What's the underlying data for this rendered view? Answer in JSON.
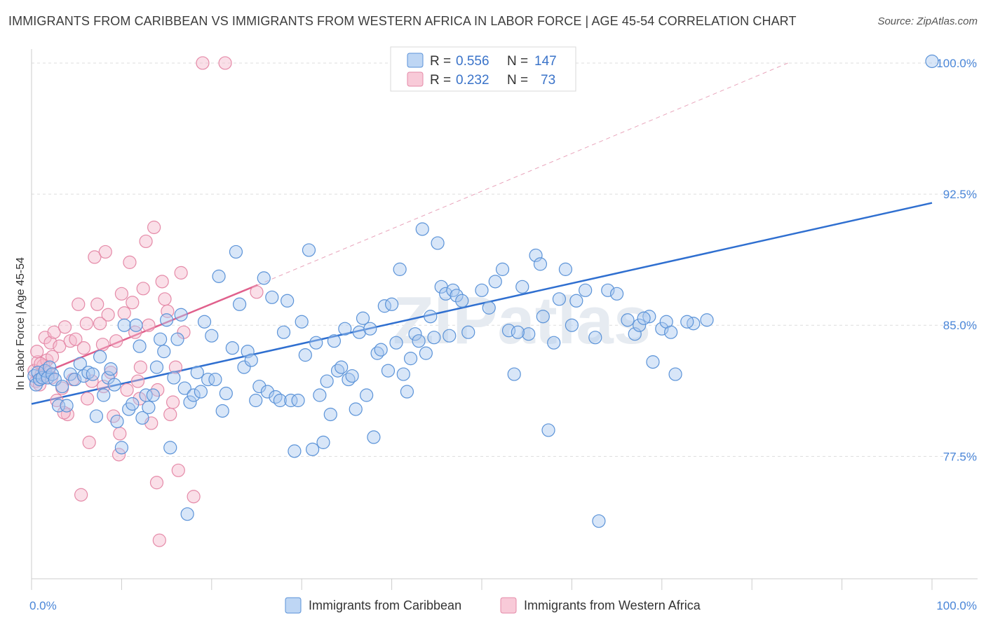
{
  "title": "IMMIGRANTS FROM CARIBBEAN VS IMMIGRANTS FROM WESTERN AFRICA IN LABOR FORCE | AGE 45-54 CORRELATION CHART",
  "source": "Source: ZipAtlas.com",
  "watermark": "ZIPatlas",
  "colors": {
    "caribbean_fill": "#a8c8f0",
    "caribbean_stroke": "#5b93d8",
    "caribbean_line": "#2f6fd0",
    "wafrica_fill": "#f5b8cb",
    "wafrica_stroke": "#e58aa8",
    "wafrica_line": "#e0608c",
    "axis_label": "#4a86d8",
    "grid": "#dddddd"
  },
  "legend": {
    "r_label": "R =",
    "n_label": "N =",
    "rows": [
      {
        "r": "0.556",
        "n": "147"
      },
      {
        "r": "0.232",
        "n": "73"
      }
    ]
  },
  "chart_data": {
    "type": "scatter",
    "title": "IMMIGRANTS FROM CARIBBEAN VS IMMIGRANTS FROM WESTERN AFRICA IN LABOR FORCE | AGE 45-54 CORRELATION CHART",
    "xlabel": "",
    "ylabel": "In Labor Force | Age 45-54",
    "xlim": [
      0,
      100
    ],
    "ylim": [
      70.5,
      100.8
    ],
    "x_tick_labels": [
      "0.0%",
      "100.0%"
    ],
    "y_ticks": [
      77.5,
      85.0,
      92.5,
      100.0
    ],
    "y_tick_labels": [
      "77.5%",
      "85.0%",
      "92.5%",
      "100.0%"
    ],
    "grid": true,
    "legend_position": "top-center",
    "series": [
      {
        "name": "Immigrants from Caribbean",
        "R": 0.556,
        "N": 147,
        "trend": {
          "x": [
            0,
            100
          ],
          "y": [
            80.5,
            92.0
          ]
        },
        "points": [
          [
            0.3,
            82.1
          ],
          [
            0.5,
            81.6
          ],
          [
            0.7,
            82.3
          ],
          [
            0.9,
            81.9
          ],
          [
            1.2,
            82.0
          ],
          [
            1.5,
            82.4
          ],
          [
            1.8,
            82.0
          ],
          [
            2.0,
            82.6
          ],
          [
            2.3,
            82.2
          ],
          [
            2.6,
            81.9
          ],
          [
            3.0,
            80.4
          ],
          [
            3.4,
            81.5
          ],
          [
            3.9,
            80.4
          ],
          [
            4.3,
            82.2
          ],
          [
            4.8,
            81.9
          ],
          [
            5.4,
            82.8
          ],
          [
            5.8,
            82.1
          ],
          [
            6.3,
            82.3
          ],
          [
            6.8,
            82.2
          ],
          [
            7.2,
            79.8
          ],
          [
            7.6,
            83.2
          ],
          [
            8.0,
            81.0
          ],
          [
            8.5,
            82.0
          ],
          [
            8.8,
            82.5
          ],
          [
            9.2,
            81.6
          ],
          [
            9.5,
            79.5
          ],
          [
            10.0,
            78.0
          ],
          [
            10.3,
            85.0
          ],
          [
            10.8,
            80.2
          ],
          [
            11.2,
            80.5
          ],
          [
            11.6,
            85.0
          ],
          [
            12.0,
            83.8
          ],
          [
            12.3,
            79.7
          ],
          [
            12.7,
            81.0
          ],
          [
            13.0,
            80.3
          ],
          [
            13.5,
            81.0
          ],
          [
            13.9,
            82.6
          ],
          [
            14.3,
            84.2
          ],
          [
            14.7,
            83.5
          ],
          [
            15.0,
            85.3
          ],
          [
            15.4,
            78.0
          ],
          [
            15.8,
            82.0
          ],
          [
            16.2,
            84.2
          ],
          [
            16.6,
            85.6
          ],
          [
            17.0,
            81.4
          ],
          [
            17.3,
            74.2
          ],
          [
            17.6,
            80.6
          ],
          [
            18.0,
            81.0
          ],
          [
            18.4,
            82.3
          ],
          [
            18.8,
            81.2
          ],
          [
            19.2,
            85.2
          ],
          [
            19.6,
            81.9
          ],
          [
            20.0,
            84.4
          ],
          [
            20.4,
            81.9
          ],
          [
            20.8,
            87.8
          ],
          [
            21.2,
            80.1
          ],
          [
            21.6,
            81.1
          ],
          [
            22.3,
            83.7
          ],
          [
            22.7,
            89.2
          ],
          [
            23.1,
            86.2
          ],
          [
            23.6,
            82.6
          ],
          [
            24.0,
            83.5
          ],
          [
            24.4,
            83.0
          ],
          [
            24.9,
            80.7
          ],
          [
            25.3,
            81.5
          ],
          [
            25.8,
            87.7
          ],
          [
            26.2,
            81.2
          ],
          [
            26.7,
            86.6
          ],
          [
            27.1,
            80.9
          ],
          [
            27.6,
            80.7
          ],
          [
            28.0,
            84.6
          ],
          [
            28.4,
            86.4
          ],
          [
            28.8,
            80.7
          ],
          [
            29.2,
            77.8
          ],
          [
            29.6,
            80.7
          ],
          [
            30.0,
            85.2
          ],
          [
            30.4,
            83.3
          ],
          [
            30.8,
            89.3
          ],
          [
            31.2,
            77.9
          ],
          [
            31.6,
            84.0
          ],
          [
            32.0,
            81.0
          ],
          [
            32.4,
            78.3
          ],
          [
            32.8,
            81.8
          ],
          [
            33.2,
            79.9
          ],
          [
            33.6,
            84.1
          ],
          [
            34.0,
            82.4
          ],
          [
            34.4,
            82.6
          ],
          [
            34.8,
            84.8
          ],
          [
            35.2,
            81.9
          ],
          [
            35.6,
            82.1
          ],
          [
            36.0,
            80.2
          ],
          [
            36.4,
            84.6
          ],
          [
            36.8,
            85.4
          ],
          [
            37.2,
            81.0
          ],
          [
            37.6,
            84.8
          ],
          [
            38.0,
            78.6
          ],
          [
            38.4,
            83.4
          ],
          [
            38.8,
            83.6
          ],
          [
            39.2,
            86.1
          ],
          [
            39.6,
            82.4
          ],
          [
            40.0,
            86.2
          ],
          [
            40.5,
            84.0
          ],
          [
            40.9,
            88.2
          ],
          [
            41.3,
            82.2
          ],
          [
            41.7,
            81.2
          ],
          [
            42.1,
            83.1
          ],
          [
            42.6,
            84.5
          ],
          [
            43.0,
            84.1
          ],
          [
            43.4,
            90.5
          ],
          [
            43.8,
            83.4
          ],
          [
            44.3,
            85.5
          ],
          [
            44.7,
            84.3
          ],
          [
            45.1,
            89.7
          ],
          [
            45.5,
            87.2
          ],
          [
            46.0,
            86.8
          ],
          [
            46.4,
            84.4
          ],
          [
            46.8,
            87.0
          ],
          [
            47.2,
            86.7
          ],
          [
            47.8,
            86.4
          ],
          [
            48.5,
            84.6
          ],
          [
            50.0,
            87.0
          ],
          [
            50.8,
            86.0
          ],
          [
            51.5,
            87.5
          ],
          [
            52.3,
            88.2
          ],
          [
            53.0,
            84.7
          ],
          [
            53.6,
            82.2
          ],
          [
            54.5,
            87.2
          ],
          [
            55.2,
            84.5
          ],
          [
            56.0,
            89.0
          ],
          [
            56.8,
            85.5
          ],
          [
            57.4,
            79.0
          ],
          [
            58.0,
            84.0
          ],
          [
            58.6,
            86.5
          ],
          [
            59.3,
            88.2
          ],
          [
            60.0,
            85.0
          ],
          [
            61.5,
            87.0
          ],
          [
            62.6,
            84.3
          ],
          [
            64.0,
            87.0
          ],
          [
            65.0,
            86.8
          ],
          [
            66.2,
            85.3
          ],
          [
            67.0,
            84.5
          ],
          [
            67.5,
            85.0
          ],
          [
            68.6,
            85.5
          ],
          [
            69.0,
            82.9
          ],
          [
            70.0,
            84.8
          ],
          [
            70.5,
            85.2
          ],
          [
            71.0,
            84.6
          ],
          [
            71.5,
            82.2
          ],
          [
            63.0,
            73.8
          ],
          [
            73.5,
            85.1
          ],
          [
            72.8,
            85.2
          ],
          [
            68.0,
            85.4
          ],
          [
            56.5,
            88.5
          ],
          [
            54.0,
            84.6
          ],
          [
            60.5,
            86.4
          ],
          [
            100.0,
            100.1
          ],
          [
            75.0,
            85.3
          ]
        ]
      },
      {
        "name": "Immigrants from Western Africa",
        "R": 0.232,
        "N": 73,
        "trend": {
          "x": [
            0,
            25.1
          ],
          "y": [
            82.0,
            87.3
          ]
        },
        "trend_extension": {
          "x": [
            25.1,
            84.0
          ],
          "y": [
            87.3,
            100.0
          ]
        },
        "points": [
          [
            0.3,
            82.4
          ],
          [
            0.5,
            81.8
          ],
          [
            0.7,
            82.9
          ],
          [
            0.9,
            81.6
          ],
          [
            1.1,
            82.2
          ],
          [
            1.3,
            82.7
          ],
          [
            1.5,
            84.3
          ],
          [
            1.7,
            83.0
          ],
          [
            1.9,
            82.3
          ],
          [
            2.1,
            84.0
          ],
          [
            2.3,
            83.2
          ],
          [
            2.5,
            84.6
          ],
          [
            2.8,
            80.7
          ],
          [
            3.1,
            83.8
          ],
          [
            3.4,
            81.4
          ],
          [
            3.7,
            84.9
          ],
          [
            4.0,
            79.9
          ],
          [
            4.3,
            84.1
          ],
          [
            4.6,
            81.9
          ],
          [
            4.9,
            84.2
          ],
          [
            5.2,
            86.2
          ],
          [
            5.5,
            75.3
          ],
          [
            5.8,
            83.7
          ],
          [
            6.1,
            85.1
          ],
          [
            6.4,
            78.3
          ],
          [
            6.7,
            81.8
          ],
          [
            7.0,
            88.9
          ],
          [
            7.3,
            86.2
          ],
          [
            7.6,
            85.1
          ],
          [
            7.9,
            83.9
          ],
          [
            8.2,
            89.2
          ],
          [
            8.5,
            85.6
          ],
          [
            8.8,
            82.3
          ],
          [
            9.1,
            79.8
          ],
          [
            9.4,
            84.1
          ],
          [
            9.7,
            77.6
          ],
          [
            10.0,
            86.8
          ],
          [
            10.3,
            85.7
          ],
          [
            10.6,
            81.3
          ],
          [
            10.9,
            88.6
          ],
          [
            11.2,
            86.3
          ],
          [
            11.5,
            84.6
          ],
          [
            11.8,
            81.8
          ],
          [
            12.1,
            82.6
          ],
          [
            12.4,
            87.1
          ],
          [
            12.7,
            89.8
          ],
          [
            13.0,
            85.0
          ],
          [
            13.3,
            79.4
          ],
          [
            13.6,
            90.6
          ],
          [
            13.9,
            76.0
          ],
          [
            14.2,
            72.7
          ],
          [
            14.5,
            87.5
          ],
          [
            14.8,
            86.5
          ],
          [
            15.1,
            85.8
          ],
          [
            15.4,
            79.9
          ],
          [
            15.7,
            80.6
          ],
          [
            16.0,
            82.6
          ],
          [
            16.3,
            76.7
          ],
          [
            16.6,
            88.0
          ],
          [
            16.9,
            84.6
          ],
          [
            18.0,
            75.2
          ],
          [
            19.0,
            100.0
          ],
          [
            21.5,
            100.0
          ],
          [
            25.0,
            86.9
          ],
          [
            3.6,
            80.0
          ],
          [
            6.2,
            80.8
          ],
          [
            2.2,
            82.0
          ],
          [
            1.0,
            82.8
          ],
          [
            0.6,
            83.5
          ],
          [
            9.8,
            78.8
          ],
          [
            12.0,
            80.8
          ],
          [
            14.0,
            81.3
          ],
          [
            8.0,
            81.5
          ]
        ]
      }
    ]
  },
  "bottom_legend": [
    "Immigrants from Caribbean",
    "Immigrants from Western Africa"
  ]
}
